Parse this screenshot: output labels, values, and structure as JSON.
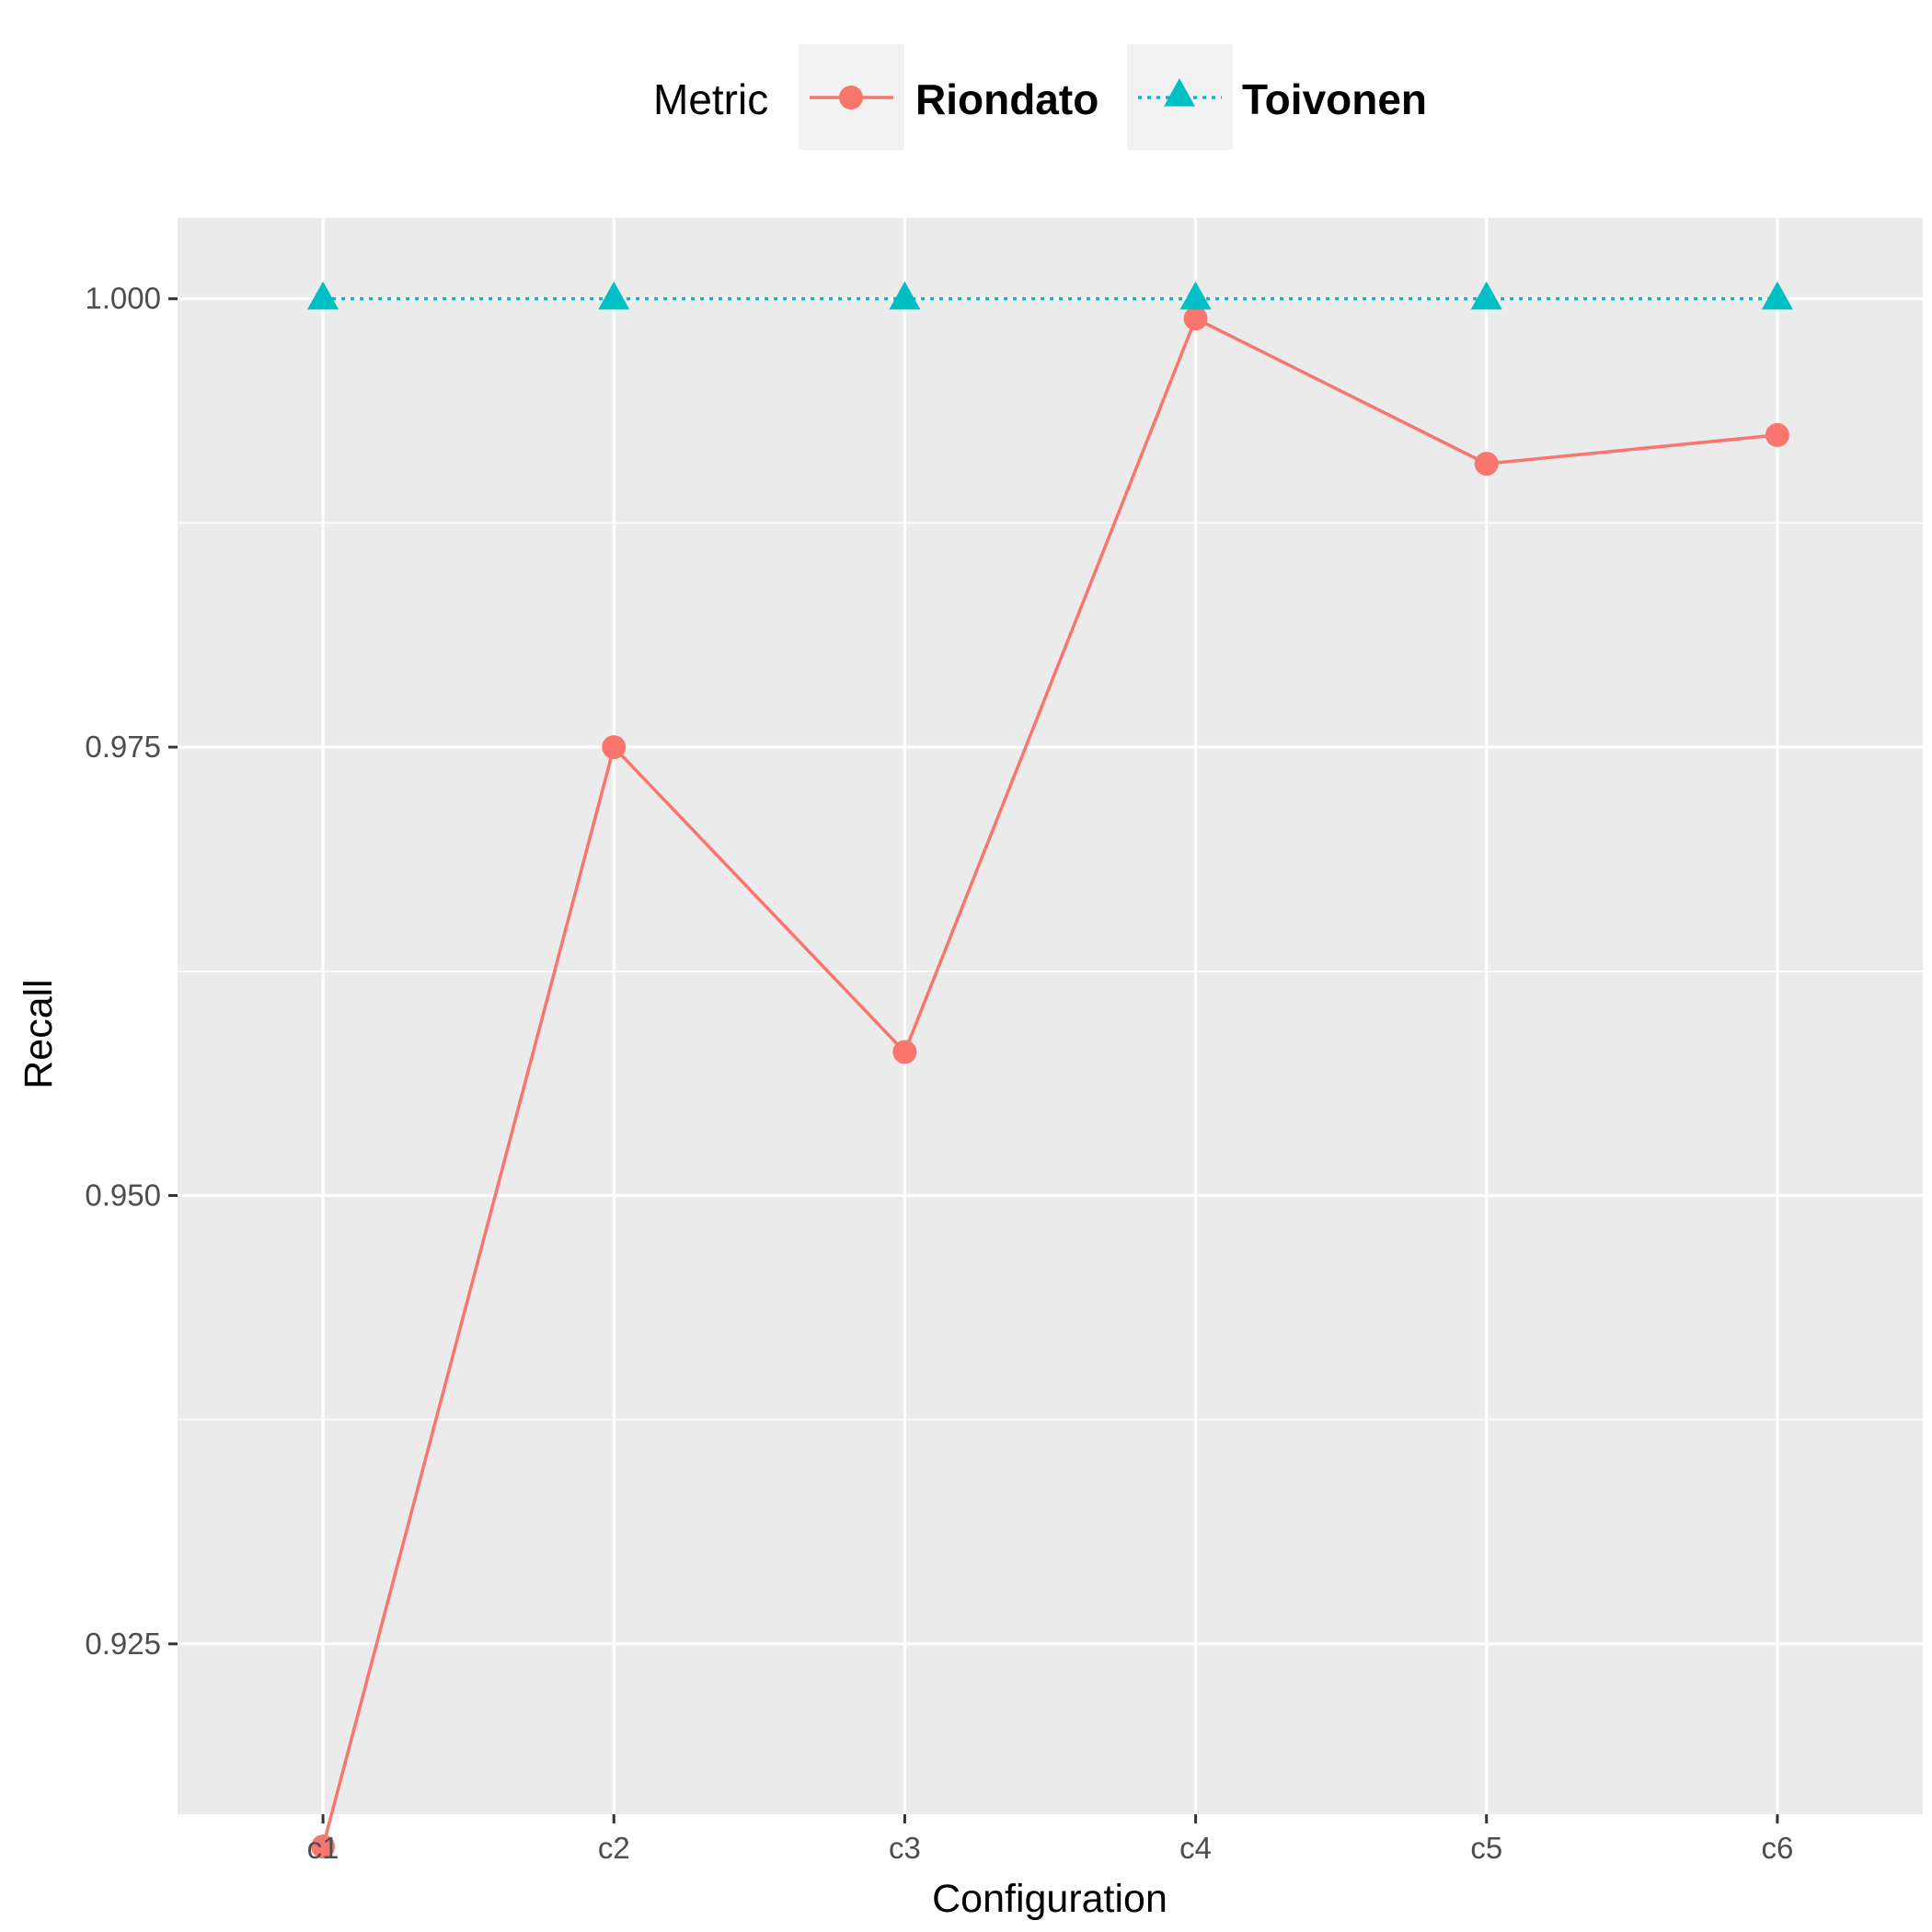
{
  "chart_data": {
    "type": "line",
    "xlabel": "Configuration",
    "ylabel": "Recall",
    "categories": [
      "c1",
      "c2",
      "c3",
      "c4",
      "c5",
      "c6"
    ],
    "ylim": [
      0.9155,
      1.0045
    ],
    "yticks": [
      0.925,
      0.95,
      0.975,
      1.0
    ],
    "ytick_labels": [
      "0.925",
      "0.950",
      "0.975",
      "1.000"
    ],
    "grid": true,
    "legend": {
      "title": "Metric",
      "position": "top"
    },
    "series": [
      {
        "name": "Riondato",
        "marker": "circle",
        "line_style": "solid",
        "color": "#F8766D",
        "values": [
          0.9137,
          0.975,
          0.958,
          0.9989,
          0.9908,
          0.9924
        ]
      },
      {
        "name": "Toivonen",
        "marker": "triangle",
        "line_style": "dotted",
        "color": "#00BFC4",
        "values": [
          1.0,
          1.0,
          1.0,
          1.0,
          1.0,
          1.0
        ]
      }
    ]
  }
}
